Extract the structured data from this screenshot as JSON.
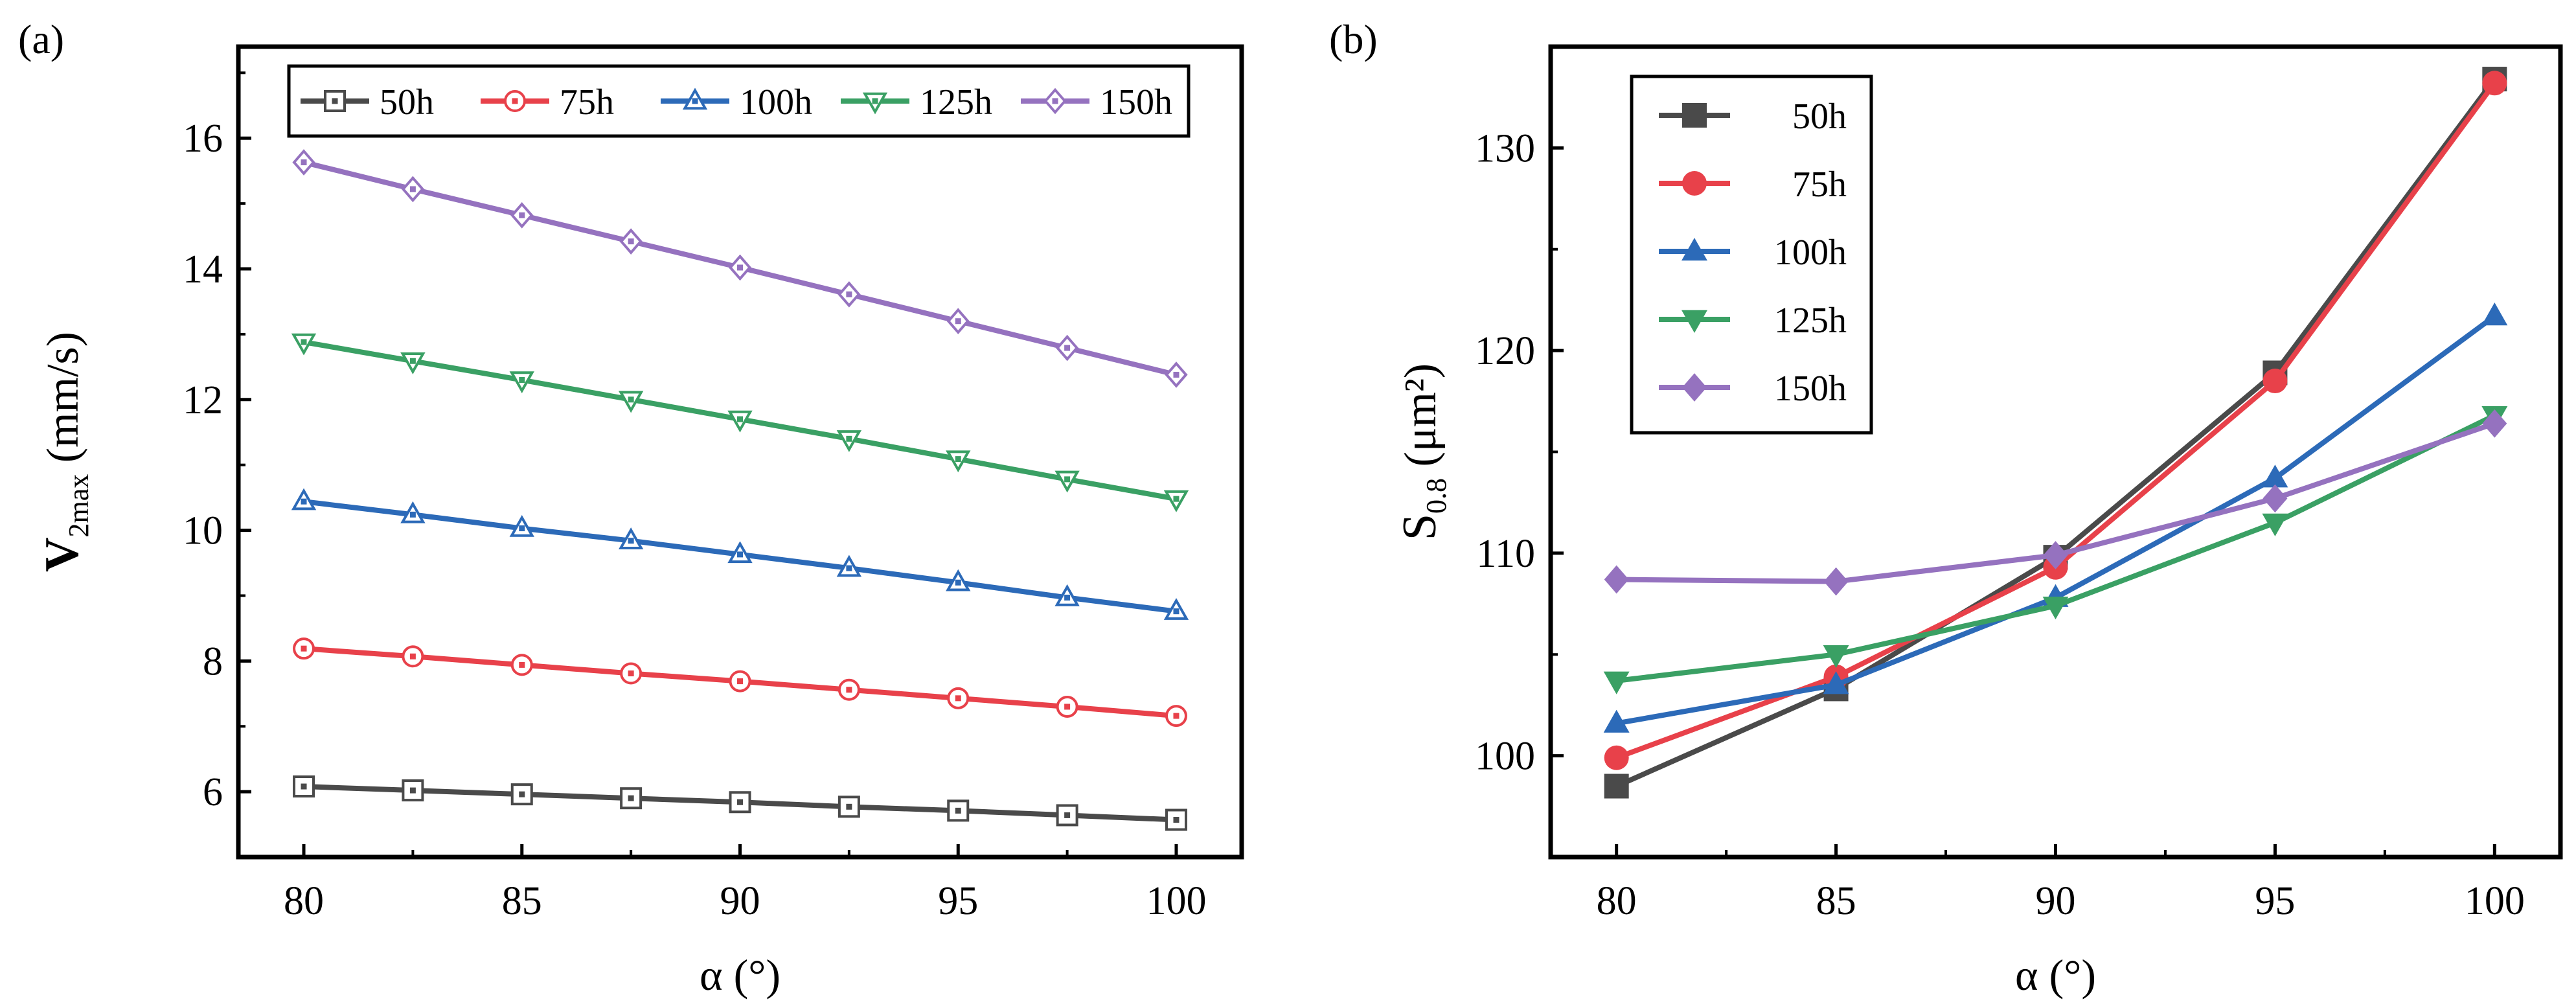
{
  "chart_data": [
    {
      "panel_label": "(a)",
      "type": "line",
      "xlabel": "α (°)",
      "ylabel": {
        "main": "V",
        "sub": "2max",
        "unit": " (mm/s)"
      },
      "xlim": [
        78.5,
        101.5
      ],
      "ylim": [
        5.0,
        17.4
      ],
      "xticks": [
        80,
        85,
        90,
        95,
        100
      ],
      "yticks": [
        6,
        8,
        10,
        12,
        14,
        16
      ],
      "x": [
        80,
        82.5,
        85,
        87.5,
        90,
        92.5,
        95,
        97.5,
        100
      ],
      "legend": {
        "placement": "top",
        "border": true
      },
      "grid": false,
      "series": [
        {
          "name": "50h",
          "color": "#4a4a4a",
          "marker": "square-open",
          "values": [
            6.08,
            6.02,
            5.96,
            5.9,
            5.84,
            5.77,
            5.71,
            5.64,
            5.57
          ]
        },
        {
          "name": "75h",
          "color": "#e8414a",
          "marker": "circle-open",
          "values": [
            8.19,
            8.07,
            7.94,
            7.81,
            7.69,
            7.56,
            7.43,
            7.3,
            7.16
          ]
        },
        {
          "name": "100h",
          "color": "#2c6ab8",
          "marker": "triangle-open",
          "values": [
            10.44,
            10.24,
            10.03,
            9.84,
            9.63,
            9.42,
            9.2,
            8.97,
            8.76
          ]
        },
        {
          "name": "125h",
          "color": "#3aa064",
          "marker": "tridown-open",
          "values": [
            12.88,
            12.59,
            12.3,
            12.0,
            11.7,
            11.4,
            11.09,
            10.78,
            10.48
          ]
        },
        {
          "name": "150h",
          "color": "#9572bf",
          "marker": "diamond-open",
          "values": [
            15.63,
            15.22,
            14.82,
            14.42,
            14.02,
            13.61,
            13.2,
            12.79,
            12.38
          ]
        }
      ]
    },
    {
      "panel_label": "(b)",
      "type": "line",
      "xlabel": "α (°)",
      "ylabel": {
        "main": "S",
        "sub": "0.8",
        "unit": " (μm²)"
      },
      "xlim": [
        78.5,
        101.5
      ],
      "ylim": [
        95,
        135
      ],
      "xticks": [
        80,
        85,
        90,
        95,
        100
      ],
      "yticks": [
        100,
        110,
        120,
        130
      ],
      "x": [
        80,
        85,
        90,
        95,
        100
      ],
      "legend": {
        "placement": "top-left",
        "border": true
      },
      "grid": false,
      "series": [
        {
          "name": "50h",
          "color": "#4a4a4a",
          "marker": "square",
          "values": [
            98.5,
            103.3,
            109.8,
            118.9,
            133.4
          ]
        },
        {
          "name": "75h",
          "color": "#e8414a",
          "marker": "circle",
          "values": [
            99.9,
            103.9,
            109.3,
            118.5,
            133.2
          ]
        },
        {
          "name": "100h",
          "color": "#2c6ab8",
          "marker": "triangle",
          "values": [
            101.6,
            103.5,
            107.8,
            113.7,
            121.7
          ]
        },
        {
          "name": "125h",
          "color": "#3aa064",
          "marker": "tridown",
          "values": [
            103.7,
            105.0,
            107.4,
            111.5,
            116.8
          ]
        },
        {
          "name": "150h",
          "color": "#9572bf",
          "marker": "diamond",
          "values": [
            108.7,
            108.6,
            109.9,
            112.7,
            116.4
          ]
        }
      ]
    }
  ]
}
